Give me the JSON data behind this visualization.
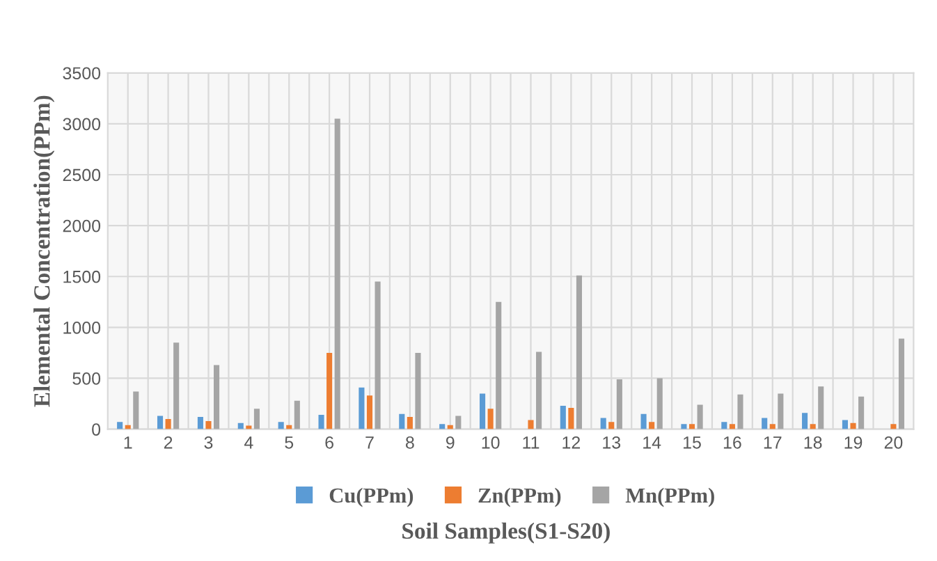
{
  "chart_data": {
    "type": "bar",
    "xlabel": "Soil Samples(S1-S20)",
    "ylabel": "Elemental Concentration(PPm)",
    "categories": [
      "1",
      "2",
      "3",
      "4",
      "5",
      "6",
      "7",
      "8",
      "9",
      "10",
      "11",
      "12",
      "13",
      "14",
      "15",
      "16",
      "17",
      "18",
      "19",
      "20"
    ],
    "series": [
      {
        "name": "Cu(PPm)",
        "color": "#5b9bd5",
        "values": [
          70,
          130,
          120,
          60,
          70,
          140,
          410,
          150,
          50,
          350,
          0,
          230,
          110,
          150,
          50,
          70,
          110,
          160,
          90,
          0
        ]
      },
      {
        "name": "Zn(PPm)",
        "color": "#ed7d31",
        "values": [
          40,
          100,
          80,
          35,
          40,
          750,
          330,
          120,
          40,
          200,
          90,
          210,
          70,
          70,
          50,
          50,
          50,
          50,
          60,
          50
        ]
      },
      {
        "name": "Mn(PPm)",
        "color": "#a5a5a5",
        "values": [
          370,
          850,
          630,
          200,
          280,
          3050,
          1450,
          750,
          130,
          1250,
          760,
          1510,
          490,
          500,
          240,
          340,
          350,
          420,
          320,
          890
        ]
      }
    ],
    "ylim": [
      0,
      3500
    ],
    "yticks": [
      0,
      {
        "value": 500,
        "label": "500"
      },
      {
        "value": 1000,
        "label": "1000"
      },
      {
        "value": 1500,
        "label": "1500"
      },
      {
        "value": 2000,
        "label": "2000"
      },
      {
        "value": 2500,
        "label": "2500"
      },
      {
        "value": 3000,
        "label": "3000"
      },
      {
        "value": 3500,
        "label": "3500"
      }
    ],
    "grid": true,
    "legend": "bottom"
  }
}
